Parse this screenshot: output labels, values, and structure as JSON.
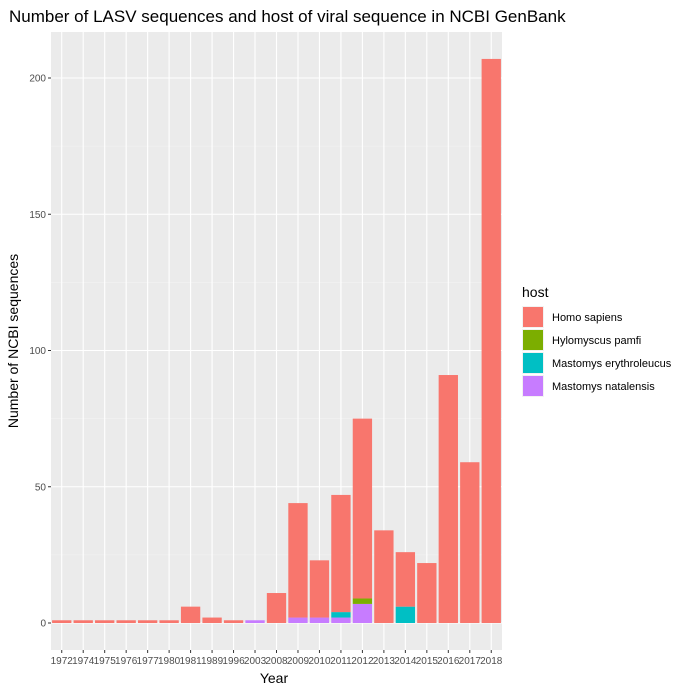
{
  "chart_data": {
    "type": "bar",
    "stacked": true,
    "title": "Number of LASV sequences and host of viral sequence in NCBI GenBank",
    "xlabel": "Year",
    "ylabel": "Number of NCBI sequences",
    "ylim": [
      0,
      220
    ],
    "yticks": [
      0,
      50,
      100,
      150,
      200
    ],
    "grid": true,
    "legend_position": "right",
    "legend_title": "host",
    "categories": [
      "1972",
      "1974",
      "1975",
      "1976",
      "1977",
      "1980",
      "1981",
      "1989",
      "1996",
      "2003",
      "2008",
      "2009",
      "2010",
      "2011",
      "2012",
      "2013",
      "2014",
      "2015",
      "2016",
      "2017",
      "2018"
    ],
    "series": [
      {
        "name": "Homo sapiens",
        "color": "#F8766D",
        "values": [
          1,
          1,
          1,
          1,
          1,
          1,
          6,
          2,
          1,
          0,
          11,
          42,
          21,
          43,
          66,
          34,
          20,
          22,
          91,
          59,
          207
        ]
      },
      {
        "name": "Hylomyscus pamfi",
        "color": "#7CAE00",
        "values": [
          0,
          0,
          0,
          0,
          0,
          0,
          0,
          0,
          0,
          0,
          0,
          0,
          0,
          0,
          2,
          0,
          0,
          0,
          0,
          0,
          0
        ]
      },
      {
        "name": "Mastomys erythroleucus",
        "color": "#00BFC4",
        "values": [
          0,
          0,
          0,
          0,
          0,
          0,
          0,
          0,
          0,
          0,
          0,
          0,
          0,
          2,
          0,
          0,
          6,
          0,
          0,
          0,
          0
        ]
      },
      {
        "name": "Mastomys natalensis",
        "color": "#C77CFF",
        "values": [
          0,
          0,
          0,
          0,
          0,
          0,
          0,
          0,
          0,
          1,
          0,
          2,
          2,
          2,
          7,
          0,
          0,
          0,
          0,
          0,
          0
        ]
      }
    ]
  }
}
